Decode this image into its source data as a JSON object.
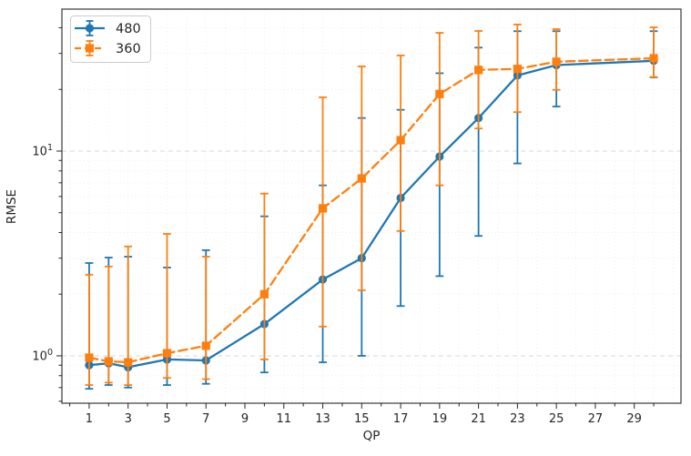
{
  "figure": {
    "background": "#ffffff"
  },
  "chart_data": {
    "type": "line",
    "title": "",
    "xlabel": "QP",
    "ylabel": "RMSE",
    "y_scale": "log",
    "grid": true,
    "legend_position": "upper-left",
    "xlim": [
      -0.4,
      31.4
    ],
    "ylim": [
      0.587,
      49.35
    ],
    "x_major_ticks": [
      1,
      3,
      5,
      7,
      9,
      11,
      13,
      15,
      17,
      19,
      21,
      23,
      25,
      27,
      29
    ],
    "x_minor_ticks": [
      0,
      2,
      4,
      6,
      8,
      10,
      12,
      14,
      16,
      18,
      20,
      22,
      24,
      26,
      28,
      30
    ],
    "x_gridlines": [
      0,
      1,
      2,
      3,
      4,
      5,
      6,
      7,
      8,
      9,
      10,
      11,
      12,
      13,
      14,
      15,
      16,
      17,
      18,
      19,
      20,
      21,
      22,
      23,
      24,
      25,
      26,
      27,
      28,
      29,
      30,
      31
    ],
    "y_major_ticks": [
      {
        "value": 1,
        "label_base": "10",
        "label_exp": "0"
      },
      {
        "value": 10,
        "label_base": "10",
        "label_exp": "1"
      }
    ],
    "y_minor_ticks": [
      0.6,
      0.7,
      0.8,
      0.9,
      2,
      3,
      4,
      5,
      6,
      7,
      8,
      9,
      20,
      30,
      40
    ],
    "x": [
      1,
      2,
      3,
      5,
      7,
      10,
      13,
      15,
      17,
      19,
      21,
      23,
      25,
      30
    ],
    "series": [
      {
        "name": "480",
        "color": "#1f77b4",
        "line_style": "solid",
        "marker": "circle",
        "values": [
          0.9,
          0.92,
          0.88,
          0.96,
          0.95,
          1.43,
          2.36,
          3.0,
          5.9,
          9.4,
          14.5,
          23.4,
          26.3,
          27.6
        ],
        "err_low": [
          0.69,
          0.72,
          0.7,
          0.72,
          0.73,
          0.83,
          0.93,
          1.0,
          1.75,
          2.45,
          3.85,
          8.7,
          16.5,
          22.9
        ],
        "err_high": [
          2.84,
          3.02,
          3.05,
          2.7,
          3.28,
          4.8,
          6.8,
          14.5,
          15.9,
          24.0,
          32.0,
          38.5,
          38.5,
          38.5
        ]
      },
      {
        "name": "360",
        "color": "#ff7f0e",
        "line_style": "dashed",
        "marker": "square",
        "values": [
          0.98,
          0.94,
          0.93,
          1.03,
          1.12,
          2.0,
          5.25,
          7.35,
          11.3,
          19.0,
          24.9,
          25.2,
          27.3,
          28.4
        ],
        "err_low": [
          0.72,
          0.74,
          0.72,
          0.78,
          0.77,
          0.96,
          1.39,
          2.09,
          4.07,
          6.8,
          12.9,
          15.5,
          19.9,
          23.0
        ],
        "err_high": [
          2.49,
          2.73,
          3.42,
          3.94,
          3.05,
          6.2,
          18.3,
          25.9,
          29.3,
          37.8,
          38.6,
          41.5,
          39.4,
          40.2
        ]
      }
    ],
    "style": {
      "spine_color": "#262626",
      "major_grid_color": "#d9d9d9",
      "minor_grid_color": "#ededed",
      "legend_border_color": "#cccccc"
    }
  }
}
